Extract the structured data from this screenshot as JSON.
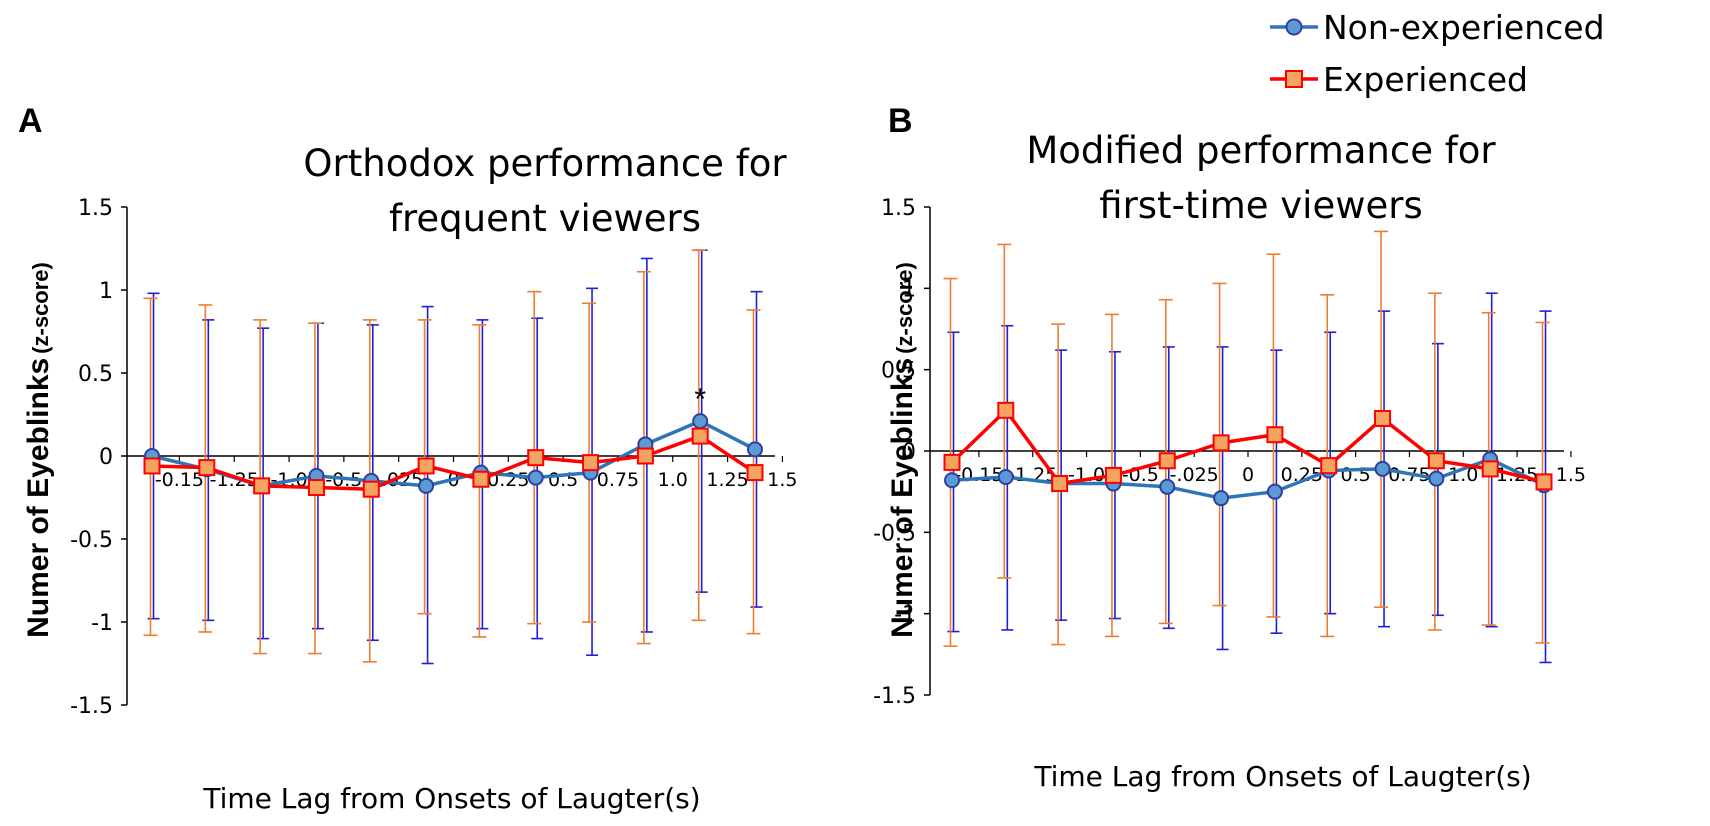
{
  "legend": {
    "items": [
      {
        "label": "Non-experienced",
        "color": "#2e75b6",
        "marker": "circle",
        "fill": "#5b9bd5",
        "edge": "#2f3f9e"
      },
      {
        "label": "Experienced",
        "color": "#ff0000",
        "marker": "square",
        "fill": "#f4a460",
        "edge": "#ff0000"
      }
    ]
  },
  "chart_data": [
    {
      "panel_label": "A",
      "type": "line",
      "title_lines": [
        "Orthodox performance for",
        "frequent viewers"
      ],
      "ylabel": "Numer of  Eyeblinks",
      "ylabel_unit": "(z-score)",
      "xlabel": "Time Lag from Onsets of Laugter(s)",
      "ylim": [
        -1.5,
        1.5
      ],
      "yticks": [
        1.5,
        1,
        0.5,
        0,
        -0.5,
        -1,
        -1.5
      ],
      "ytick_labels": [
        "1.5",
        "1",
        "0.5",
        "0",
        "-0.5",
        "-1",
        "-1.5"
      ],
      "x_tick_labels": [
        "-0.15",
        "-1.25",
        "-1.0",
        "-0.5",
        "-.025",
        "0",
        "0.25",
        "0.5",
        "0.75",
        "1.0",
        "1.25",
        "1.5"
      ],
      "annotation": {
        "text": "*",
        "point_index": 10
      },
      "series": [
        {
          "name": "Non-experienced",
          "values": [
            0.0,
            -0.08,
            -0.18,
            -0.12,
            -0.15,
            -0.18,
            -0.1,
            -0.13,
            -0.1,
            0.07,
            0.21,
            0.04
          ],
          "err_upper": [
            0.98,
            0.82,
            0.77,
            0.8,
            0.79,
            0.9,
            0.82,
            0.83,
            1.01,
            1.19,
            1.24,
            0.99
          ],
          "err_lower": [
            -0.98,
            -0.99,
            -1.1,
            -1.04,
            -1.11,
            -1.25,
            -1.04,
            -1.1,
            -1.2,
            -1.06,
            -0.82,
            -0.91
          ]
        },
        {
          "name": "Experienced",
          "values": [
            -0.06,
            -0.07,
            -0.18,
            -0.19,
            -0.2,
            -0.06,
            -0.14,
            -0.01,
            -0.04,
            0.0,
            0.12,
            -0.1
          ],
          "err_upper": [
            0.95,
            0.91,
            0.82,
            0.8,
            0.82,
            0.82,
            0.79,
            0.99,
            0.92,
            1.11,
            1.24,
            0.88
          ],
          "err_lower": [
            -1.08,
            -1.06,
            -1.19,
            -1.19,
            -1.24,
            -0.95,
            -1.09,
            -1.01,
            -1.0,
            -1.13,
            -0.99,
            -1.07
          ]
        }
      ]
    },
    {
      "panel_label": "B",
      "type": "line",
      "title_lines": [
        "Modified performance for",
        "first-time viewers"
      ],
      "ylabel": "Numer of  Eyeblinks",
      "ylabel_unit": "(z-score)",
      "xlabel": "Time Lag from Onsets of Laugter(s)",
      "ylim": [
        -1.5,
        1.5
      ],
      "yticks": [
        1.5,
        1,
        0.5,
        0,
        -0.5,
        -1,
        -1.5
      ],
      "ytick_labels": [
        "1.5",
        "1",
        "0.5",
        "0",
        "-0.5",
        "-1",
        "-1.5"
      ],
      "x_tick_labels": [
        "-0.15",
        "-1.25",
        "-1.0",
        "-0.5",
        "-.025",
        "0",
        "0.25",
        "0.5",
        "0.75",
        "1.0",
        "1.25",
        "1.5"
      ],
      "series": [
        {
          "name": "Non-experienced",
          "values": [
            -0.18,
            -0.16,
            -0.2,
            -0.2,
            -0.22,
            -0.29,
            -0.25,
            -0.12,
            -0.11,
            -0.17,
            -0.05,
            -0.21
          ],
          "err_upper": [
            0.73,
            0.77,
            0.62,
            0.61,
            0.64,
            0.64,
            0.62,
            0.73,
            0.86,
            0.66,
            0.97,
            0.86
          ],
          "err_lower": [
            -1.11,
            -1.1,
            -1.04,
            -1.03,
            -1.09,
            -1.22,
            -1.12,
            -1.0,
            -1.08,
            -1.01,
            -1.08,
            -1.3
          ]
        },
        {
          "name": "Experienced",
          "values": [
            -0.07,
            0.25,
            -0.2,
            -0.15,
            -0.06,
            0.05,
            0.1,
            -0.09,
            0.2,
            -0.06,
            -0.11,
            -0.19
          ],
          "err_upper": [
            1.06,
            1.27,
            0.78,
            0.84,
            0.93,
            1.03,
            1.21,
            0.96,
            1.35,
            0.97,
            0.85,
            0.79
          ],
          "err_lower": [
            -1.2,
            -0.78,
            -1.19,
            -1.14,
            -1.06,
            -0.95,
            -1.02,
            -1.14,
            -0.96,
            -1.1,
            -1.07,
            -1.18
          ]
        }
      ]
    }
  ]
}
